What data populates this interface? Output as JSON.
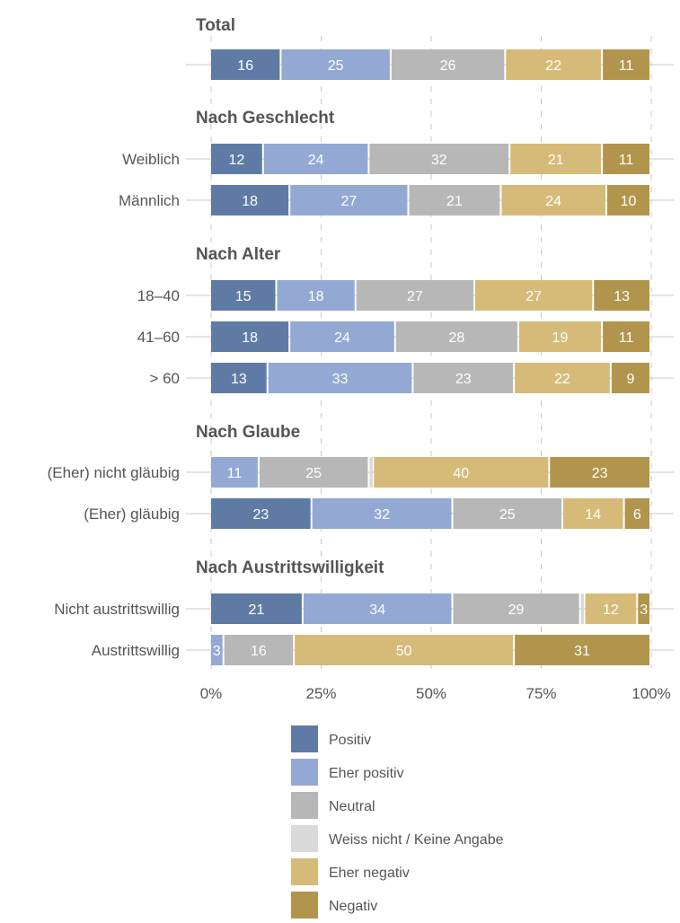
{
  "chart_data": {
    "type": "bar",
    "orientation": "horizontal",
    "stacked": true,
    "xlim": [
      0,
      100
    ],
    "x_ticks": [
      "0%",
      "25%",
      "50%",
      "75%",
      "100%"
    ],
    "grid": true,
    "legend_position": "bottom",
    "series": [
      {
        "name": "Positiv",
        "color": "#5f7ba5"
      },
      {
        "name": "Eher positiv",
        "color": "#93a9d3"
      },
      {
        "name": "Neutral",
        "color": "#b7b7b7"
      },
      {
        "name": "Weiss nicht / Keine Angabe",
        "color": "#dadada"
      },
      {
        "name": "Eher negativ",
        "color": "#d6bb78"
      },
      {
        "name": "Negativ",
        "color": "#b1954c"
      }
    ],
    "groups": [
      {
        "title": "Total",
        "rows": [
          {
            "label": "",
            "values": [
              16,
              25,
              26,
              0,
              22,
              11
            ]
          }
        ]
      },
      {
        "title": "Nach Geschlecht",
        "rows": [
          {
            "label": "Weiblich",
            "values": [
              12,
              24,
              32,
              0,
              21,
              11
            ]
          },
          {
            "label": "Männlich",
            "values": [
              18,
              27,
              21,
              0,
              24,
              10
            ]
          }
        ]
      },
      {
        "title": "Nach Alter",
        "rows": [
          {
            "label": "18–40",
            "values": [
              15,
              18,
              27,
              0,
              27,
              13
            ]
          },
          {
            "label": "41–60",
            "values": [
              18,
              24,
              28,
              0,
              19,
              11
            ]
          },
          {
            "label": "> 60",
            "values": [
              13,
              33,
              23,
              0,
              22,
              9
            ]
          }
        ]
      },
      {
        "title": "Nach Glaube",
        "rows": [
          {
            "label": "(Eher) nicht gläubig",
            "values": [
              0,
              11,
              25,
              1,
              40,
              23
            ]
          },
          {
            "label": "(Eher) gläubig",
            "values": [
              23,
              32,
              25,
              0,
              14,
              6
            ]
          }
        ]
      },
      {
        "title": "Nach Austrittswilligkeit",
        "rows": [
          {
            "label": "Nicht austrittswillig",
            "values": [
              21,
              34,
              29,
              1,
              12,
              3
            ]
          },
          {
            "label": "Austrittswillig",
            "values": [
              0,
              3,
              16,
              0,
              50,
              31
            ]
          }
        ]
      }
    ]
  }
}
